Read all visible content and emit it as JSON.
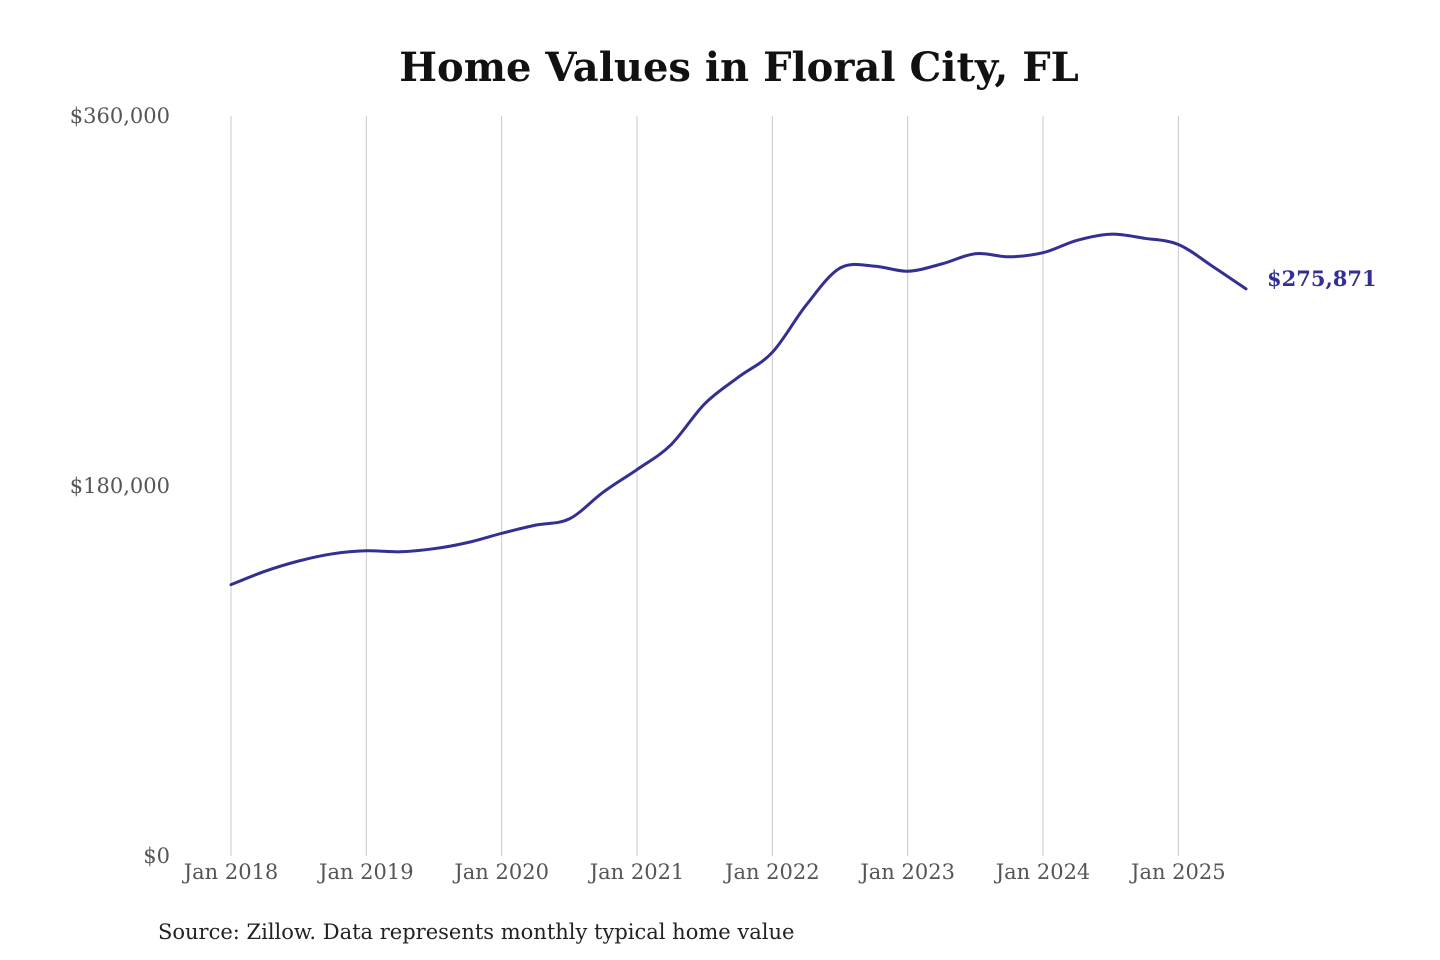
{
  "chart_data": {
    "type": "line",
    "title": "Home Values in Floral City, FL",
    "xlabel": "",
    "ylabel": "",
    "source_note": "Source: Zillow. Data represents monthly typical home value",
    "x_ticks": [
      "Jan 2018",
      "Jan 2019",
      "Jan 2020",
      "Jan 2021",
      "Jan 2022",
      "Jan 2023",
      "Jan 2024",
      "Jan 2025"
    ],
    "y_ticks": [
      {
        "value": 0,
        "label": "$0"
      },
      {
        "value": 180000,
        "label": "$180,000"
      },
      {
        "value": 360000,
        "label": "$360,000"
      }
    ],
    "ylim": [
      0,
      360000
    ],
    "xlim": [
      "2018-01",
      "2025-07"
    ],
    "grid": "vertical",
    "line_color": "#332f93",
    "end_label": "$275,871",
    "series": [
      {
        "points": [
          {
            "x": "2018-01",
            "y": 132000
          },
          {
            "x": "2018-04",
            "y": 138500
          },
          {
            "x": "2018-07",
            "y": 143500
          },
          {
            "x": "2018-10",
            "y": 147000
          },
          {
            "x": "2019-01",
            "y": 148500
          },
          {
            "x": "2019-04",
            "y": 148000
          },
          {
            "x": "2019-07",
            "y": 149500
          },
          {
            "x": "2019-10",
            "y": 152500
          },
          {
            "x": "2020-01",
            "y": 157000
          },
          {
            "x": "2020-04",
            "y": 161000
          },
          {
            "x": "2020-07",
            "y": 164000
          },
          {
            "x": "2020-10",
            "y": 177000
          },
          {
            "x": "2021-01",
            "y": 188000
          },
          {
            "x": "2021-04",
            "y": 200000
          },
          {
            "x": "2021-07",
            "y": 220000
          },
          {
            "x": "2021-10",
            "y": 233000
          },
          {
            "x": "2022-01",
            "y": 245000
          },
          {
            "x": "2022-04",
            "y": 268000
          },
          {
            "x": "2022-07",
            "y": 286000
          },
          {
            "x": "2022-10",
            "y": 287000
          },
          {
            "x": "2023-01",
            "y": 284500
          },
          {
            "x": "2023-04",
            "y": 288000
          },
          {
            "x": "2023-07",
            "y": 293000
          },
          {
            "x": "2023-10",
            "y": 291500
          },
          {
            "x": "2024-01",
            "y": 293500
          },
          {
            "x": "2024-04",
            "y": 299500
          },
          {
            "x": "2024-07",
            "y": 302500
          },
          {
            "x": "2024-10",
            "y": 300500
          },
          {
            "x": "2025-01",
            "y": 297500
          },
          {
            "x": "2025-04",
            "y": 287000
          },
          {
            "x": "2025-07",
            "y": 275871
          }
        ]
      }
    ]
  }
}
